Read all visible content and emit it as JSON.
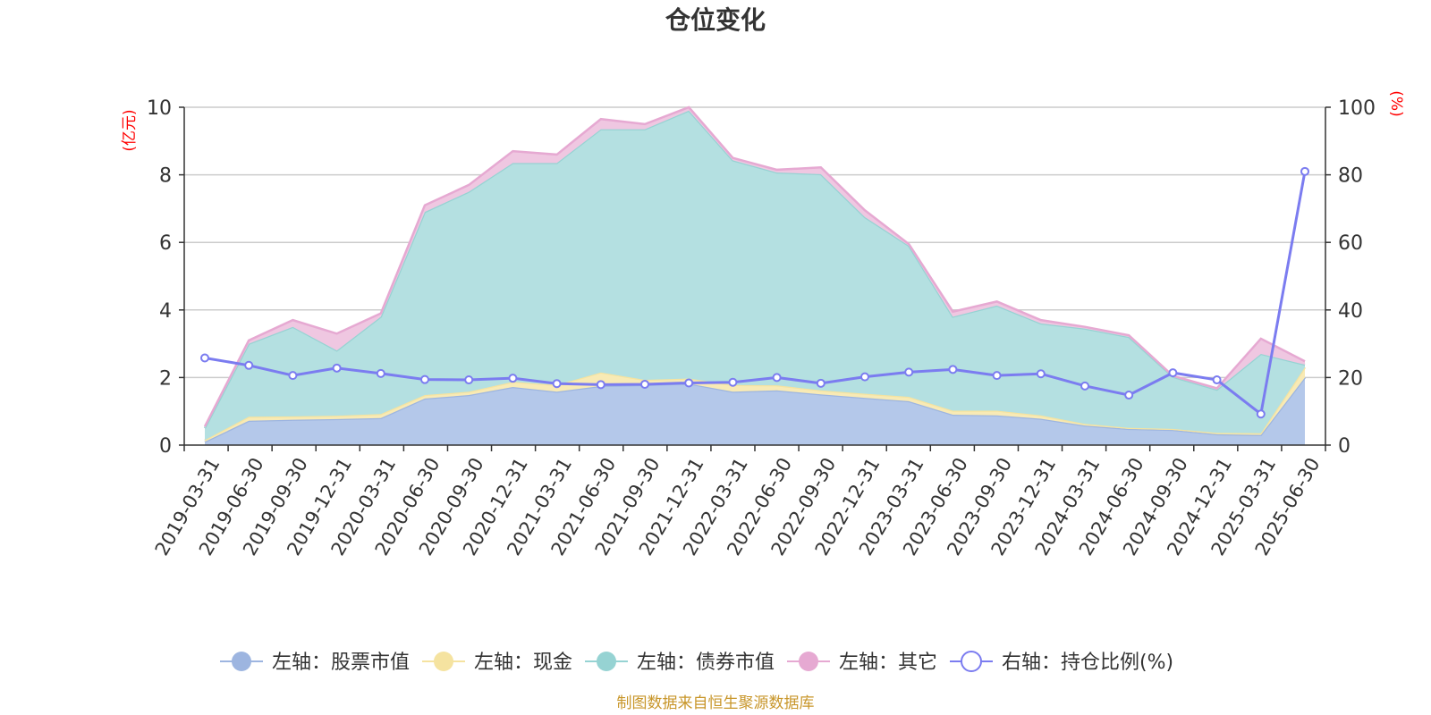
{
  "chart_data": {
    "type": "area",
    "title": "仓位变化",
    "left_axis": {
      "unit": "(亿元)",
      "ylim": [
        0,
        10
      ],
      "ticks": [
        0,
        2,
        4,
        6,
        8,
        10
      ]
    },
    "right_axis": {
      "unit": "(%)",
      "ylim": [
        0,
        100
      ],
      "ticks": [
        0,
        20,
        40,
        60,
        80,
        100
      ]
    },
    "grid": true,
    "stacked": true,
    "categories": [
      "2019-03-31",
      "2019-06-30",
      "2019-09-30",
      "2019-12-31",
      "2020-03-31",
      "2020-06-30",
      "2020-09-30",
      "2020-12-31",
      "2021-03-31",
      "2021-06-30",
      "2021-09-30",
      "2021-12-31",
      "2022-03-31",
      "2022-06-30",
      "2022-09-30",
      "2022-12-31",
      "2023-03-31",
      "2023-06-30",
      "2023-09-30",
      "2023-12-31",
      "2024-03-31",
      "2024-06-30",
      "2024-09-30",
      "2024-12-31",
      "2025-03-31",
      "2025-06-30"
    ],
    "series": [
      {
        "name": "左轴：股票市值",
        "axis": "left",
        "type": "area",
        "color": "#9db5e0",
        "fill": "#b4c8ea",
        "values": [
          0.1,
          0.72,
          0.75,
          0.77,
          0.8,
          1.38,
          1.48,
          1.72,
          1.58,
          1.75,
          1.78,
          1.82,
          1.58,
          1.62,
          1.5,
          1.4,
          1.3,
          0.9,
          0.88,
          0.78,
          0.58,
          0.48,
          0.45,
          0.32,
          0.3,
          2.0
        ]
      },
      {
        "name": "左轴：现金",
        "axis": "left",
        "type": "area",
        "color": "#f5e3a0",
        "fill": "#f8eab5",
        "values": [
          0.05,
          0.12,
          0.1,
          0.1,
          0.12,
          0.1,
          0.1,
          0.15,
          0.2,
          0.4,
          0.15,
          0.15,
          0.2,
          0.15,
          0.12,
          0.12,
          0.13,
          0.12,
          0.14,
          0.1,
          0.05,
          0.03,
          0.03,
          0.04,
          0.05,
          0.3
        ]
      },
      {
        "name": "左轴：债券市值",
        "axis": "left",
        "type": "area",
        "color": "#96d3d3",
        "fill": "#b4e0e1",
        "values": [
          0.35,
          2.16,
          2.65,
          1.93,
          2.88,
          5.42,
          5.92,
          6.48,
          6.57,
          7.2,
          7.42,
          7.93,
          6.65,
          6.3,
          6.4,
          5.23,
          4.47,
          2.78,
          3.11,
          2.72,
          2.82,
          2.69,
          1.54,
          1.28,
          2.35,
          0.08
        ]
      },
      {
        "name": "左轴：其它",
        "axis": "left",
        "type": "area",
        "color": "#e6a9d2",
        "fill": "#efc7e1",
        "values": [
          0.05,
          0.1,
          0.2,
          0.5,
          0.1,
          0.2,
          0.2,
          0.35,
          0.25,
          0.3,
          0.15,
          0.1,
          0.07,
          0.08,
          0.2,
          0.2,
          0.05,
          0.15,
          0.12,
          0.1,
          0.05,
          0.05,
          0.03,
          0.04,
          0.45,
          0.1
        ]
      },
      {
        "name": "右轴：持仓比例(%)",
        "axis": "right",
        "type": "line",
        "color": "#7b7cf0",
        "values": [
          25.8,
          23.6,
          20.6,
          22.8,
          21.2,
          19.4,
          19.3,
          19.8,
          18.2,
          17.9,
          18.0,
          18.4,
          18.6,
          20.0,
          18.3,
          20.2,
          21.6,
          22.4,
          20.6,
          21.1,
          17.5,
          14.8,
          21.4,
          19.3,
          9.2,
          81.0
        ]
      }
    ],
    "legend_position": "bottom",
    "source": "制图数据来自恒生聚源数据库"
  }
}
